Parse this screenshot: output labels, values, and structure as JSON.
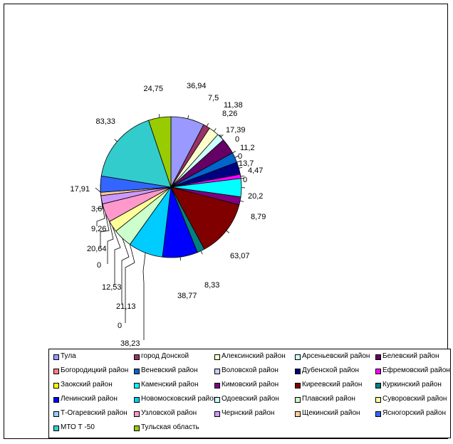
{
  "chart_data": {
    "type": "pie",
    "title": "",
    "slices": [
      {
        "label": "Тула",
        "value": 36.94,
        "value_label": "36,94",
        "color": "#9999FF"
      },
      {
        "label": "город Донской",
        "value": 7.5,
        "value_label": "7,5",
        "color": "#993366"
      },
      {
        "label": "Алексинский район",
        "value": 11.38,
        "value_label": "11,38",
        "color": "#FFFFCC"
      },
      {
        "label": "Арсеньевский район",
        "value": 8.26,
        "value_label": "8,26",
        "color": "#CCFFFF"
      },
      {
        "label": "Белевский район",
        "value": 17.39,
        "value_label": "17,39",
        "color": "#660066"
      },
      {
        "label": "Богородицкий район",
        "value": 0,
        "value_label": "0",
        "color": "#FF8080"
      },
      {
        "label": "Веневский район",
        "value": 11.2,
        "value_label": "11,2",
        "color": "#0066CC"
      },
      {
        "label": "Воловской район",
        "value": 0,
        "value_label": "0",
        "color": "#CCCCFF"
      },
      {
        "label": "Дубенской район",
        "value": 13.7,
        "value_label": "13,7",
        "color": "#000080"
      },
      {
        "label": "Ефремовский район",
        "value": 4.47,
        "value_label": "4,47",
        "color": "#FF00FF"
      },
      {
        "label": "Заокский район",
        "value": 0,
        "value_label": "0",
        "color": "#FFFF00"
      },
      {
        "label": "Каменский район",
        "value": 20.2,
        "value_label": "20,2",
        "color": "#00FFFF"
      },
      {
        "label": "Кимовский район",
        "value": 8.79,
        "value_label": "8,79",
        "color": "#800080"
      },
      {
        "label": "Киреевский район",
        "value": 63.07,
        "value_label": "63,07",
        "color": "#800000"
      },
      {
        "label": "Куркинский район",
        "value": 8.33,
        "value_label": "8,33",
        "color": "#008080"
      },
      {
        "label": "Ленинский район",
        "value": 38.77,
        "value_label": "38,77",
        "color": "#0000FF"
      },
      {
        "label": "Новомосковский район",
        "value": 38.23,
        "value_label": "38,23",
        "color": "#00CCFF"
      },
      {
        "label": "Одоевский район",
        "value": 0,
        "value_label": "0",
        "color": "#CCFFFF"
      },
      {
        "label": "Плавский район",
        "value": 21.13,
        "value_label": "21,13",
        "color": "#CCFFCC"
      },
      {
        "label": "Суворовский район",
        "value": 12.53,
        "value_label": "12,53",
        "color": "#FFFF99"
      },
      {
        "label": "Т-Огаревский район",
        "value": 0,
        "value_label": "0",
        "color": "#99CCFF"
      },
      {
        "label": "Узловской район",
        "value": 20.64,
        "value_label": "20,64",
        "color": "#FF99CC"
      },
      {
        "label": "Чернский район",
        "value": 9.26,
        "value_label": "9,26",
        "color": "#CC99FF"
      },
      {
        "label": "Щекинский район",
        "value": 3.6,
        "value_label": "3,6",
        "color": "#FFCC99"
      },
      {
        "label": "Ясногорский район",
        "value": 17.91,
        "value_label": "17,91",
        "color": "#3366FF"
      },
      {
        "label": "МТО Т -50",
        "value": 83.33,
        "value_label": "83,33",
        "color": "#33CCCC"
      },
      {
        "label": "Тульская область",
        "value": 24.75,
        "value_label": "24,75",
        "color": "#99CC00"
      }
    ],
    "legend_placement": "bottom",
    "legend_order": [
      "Тула",
      "город Донской",
      "Алексинский район",
      "Арсеньевский район",
      "Белевский район",
      "Богородицкий район",
      "Веневский район",
      "Воловской район",
      "Дубенской район",
      "Ефремовский район",
      "Заокский район",
      "Каменский район",
      "Кимовский район",
      "Киреевский район",
      "Куркинский район",
      "Ленинский район",
      "Новомосковский район",
      "Одоевский район",
      "Плавский район",
      "Суворовский район",
      "Т-Огаревский район",
      "Узловской район",
      "Чернский район",
      "Щекинский район",
      "Ясногорский район",
      "МТО Т -50",
      "Тульская область"
    ]
  }
}
